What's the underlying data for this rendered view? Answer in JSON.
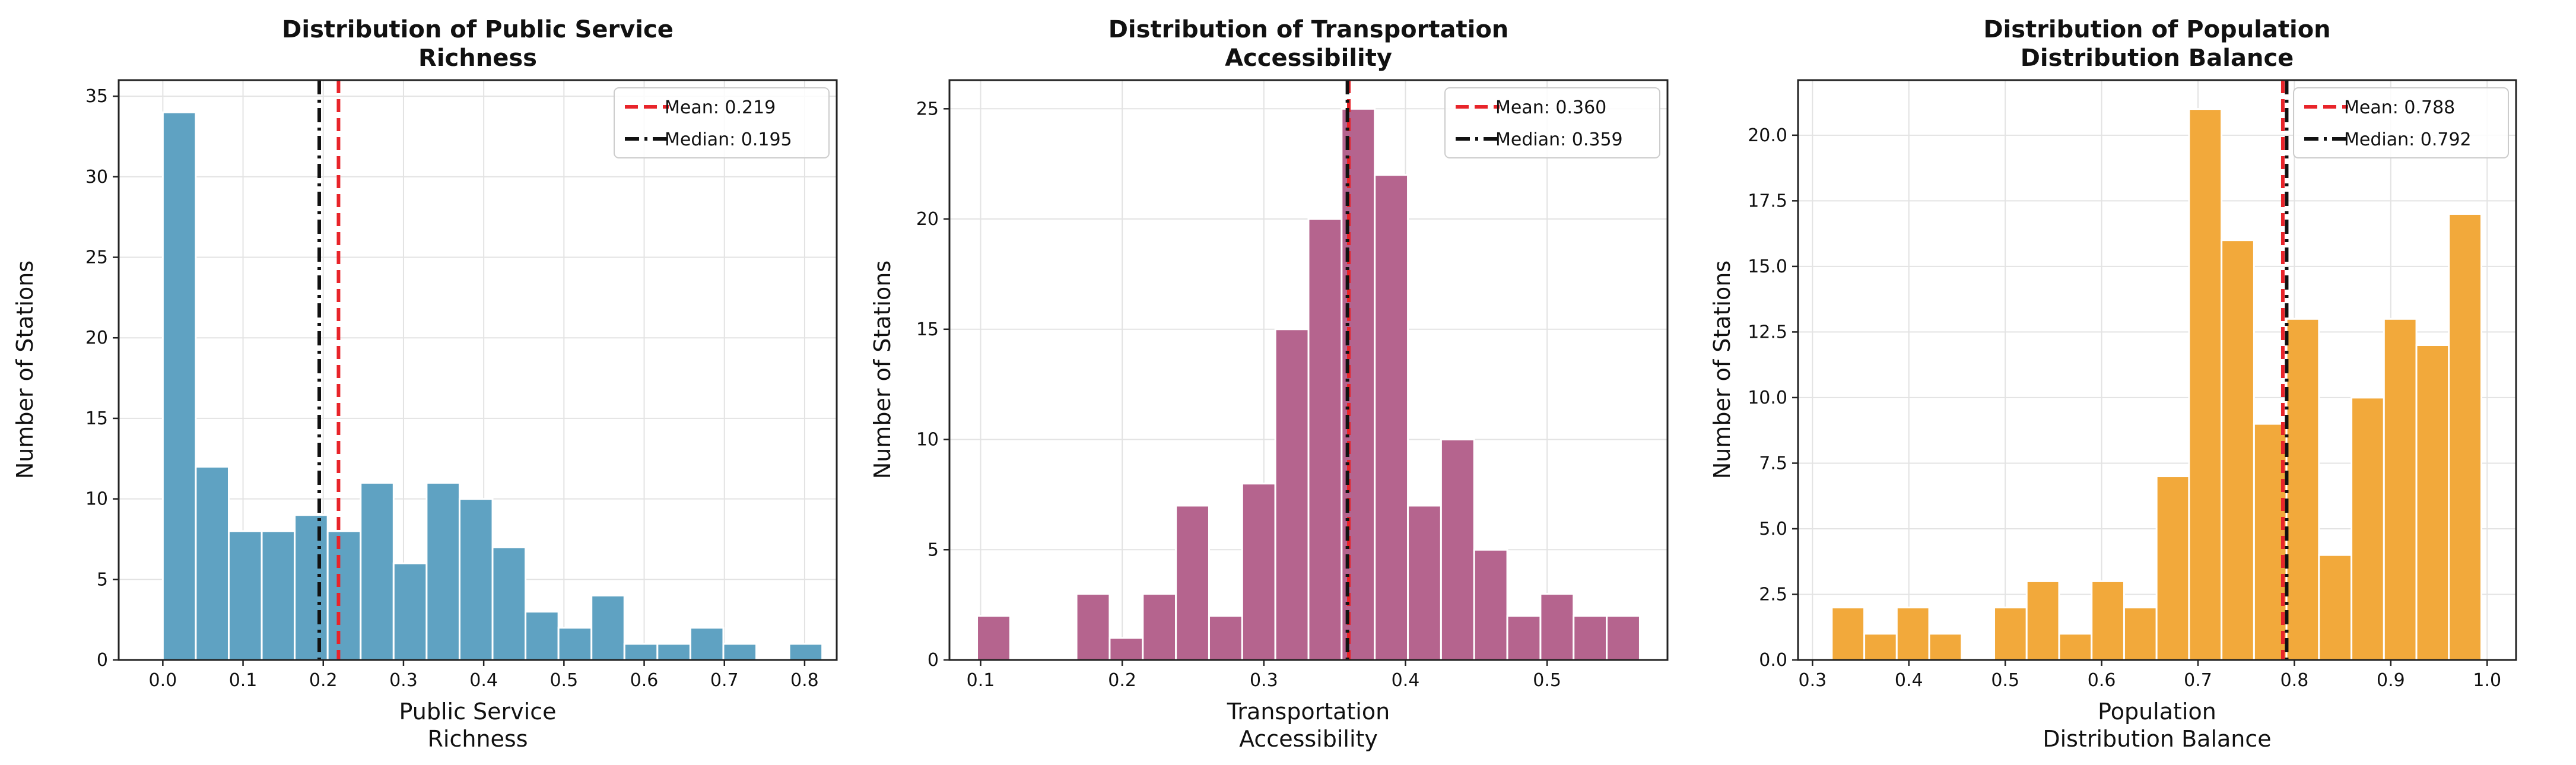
{
  "chart_data": [
    {
      "type": "bar",
      "title_lines": [
        "Distribution of Public Service",
        "Richness"
      ],
      "xlabel_lines": [
        "Public Service",
        "Richness"
      ],
      "ylabel": "Number of Stations",
      "xlim": [
        -0.055,
        0.84
      ],
      "ylim": [
        0,
        36
      ],
      "xticks": [
        0.0,
        0.1,
        0.2,
        0.3,
        0.4,
        0.5,
        0.6,
        0.7,
        0.8
      ],
      "xtick_labels": [
        "0.0",
        "0.1",
        "0.2",
        "0.3",
        "0.4",
        "0.5",
        "0.6",
        "0.7",
        "0.8"
      ],
      "yticks": [
        0,
        5,
        10,
        15,
        20,
        25,
        30,
        35
      ],
      "ytick_labels": [
        "0",
        "5",
        "10",
        "15",
        "20",
        "25",
        "30",
        "35"
      ],
      "bin_start": 0.0,
      "bin_width": 0.0411,
      "values": [
        34,
        12,
        8,
        8,
        9,
        8,
        11,
        6,
        11,
        10,
        7,
        3,
        2,
        4,
        1,
        1,
        2,
        1,
        0,
        1
      ],
      "color": "#5fa2c2",
      "mean": 0.219,
      "median": 0.195,
      "legend": [
        "Mean: 0.219",
        "Median: 0.195"
      ],
      "legend_position": "upper right",
      "grid": true
    },
    {
      "type": "bar",
      "title_lines": [
        "Distribution of Transportation",
        "Accessibility"
      ],
      "xlabel_lines": [
        "Transportation",
        "Accessibility"
      ],
      "ylabel": "Number of Stations",
      "xlim": [
        0.078,
        0.585
      ],
      "ylim": [
        0,
        26.3
      ],
      "xticks": [
        0.1,
        0.2,
        0.3,
        0.4,
        0.5
      ],
      "xtick_labels": [
        "0.1",
        "0.2",
        "0.3",
        "0.4",
        "0.5"
      ],
      "yticks": [
        0,
        5,
        10,
        15,
        20,
        25
      ],
      "ytick_labels": [
        "0",
        "5",
        "10",
        "15",
        "20",
        "25"
      ],
      "bin_start": 0.0975,
      "bin_width": 0.0234,
      "values": [
        2,
        0,
        0,
        3,
        1,
        3,
        7,
        2,
        8,
        15,
        20,
        25,
        22,
        7,
        10,
        5,
        2,
        3,
        2,
        2
      ],
      "color": "#b5648e",
      "mean": 0.36,
      "median": 0.359,
      "legend": [
        "Mean: 0.360",
        "Median: 0.359"
      ],
      "legend_position": "upper right",
      "grid": true
    },
    {
      "type": "bar",
      "title_lines": [
        "Distribution of Population",
        "Distribution Balance"
      ],
      "xlabel_lines": [
        "Population",
        "Distribution Balance"
      ],
      "ylabel": "Number of Stations",
      "xlim": [
        0.285,
        1.03
      ],
      "ylim": [
        0,
        22.1
      ],
      "xticks": [
        0.3,
        0.4,
        0.5,
        0.6,
        0.7,
        0.8,
        0.9,
        1.0
      ],
      "xtick_labels": [
        "0.3",
        "0.4",
        "0.5",
        "0.6",
        "0.7",
        "0.8",
        "0.9",
        "1.0"
      ],
      "yticks": [
        0,
        2.5,
        5.0,
        7.5,
        10.0,
        12.5,
        15.0,
        17.5,
        20.0
      ],
      "ytick_labels": [
        "0.0",
        "2.5",
        "5.0",
        "7.5",
        "10.0",
        "12.5",
        "15.0",
        "17.5",
        "20.0"
      ],
      "bin_start": 0.32,
      "bin_width": 0.0337,
      "values": [
        2,
        1,
        2,
        1,
        0,
        2,
        3,
        1,
        3,
        2,
        7,
        21,
        16,
        9,
        13,
        4,
        10,
        13,
        12,
        17
      ],
      "color": "#f2a93b",
      "mean": 0.788,
      "median": 0.792,
      "legend": [
        "Mean: 0.788",
        "Median: 0.792"
      ],
      "legend_position": "upper right",
      "grid": true
    }
  ]
}
